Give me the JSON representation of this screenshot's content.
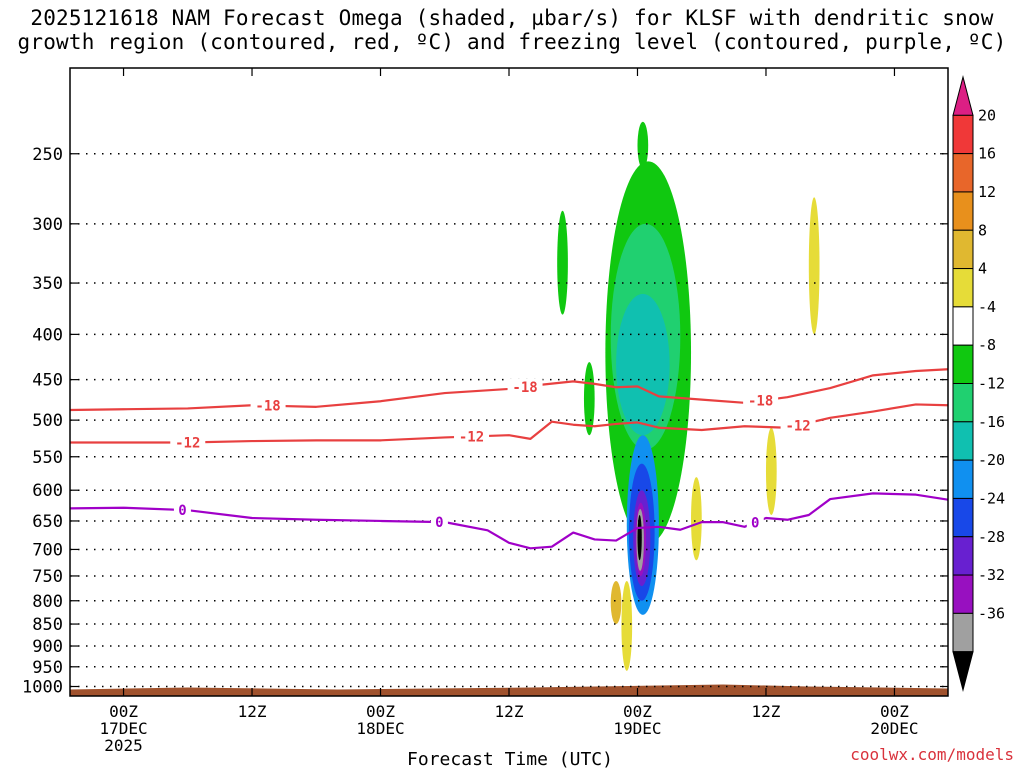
{
  "title": {
    "line1": "2025121618 NAM Forecast Omega (shaded, µbar/s) for KLSF with dendritic snow",
    "line2": "growth region (contoured, red, ºC) and freezing level (contoured, purple, ºC)"
  },
  "credit": "coolwx.com/models",
  "chart_data": {
    "type": "time-height cross section (shaded contour)",
    "xlabel": "Forecast Time (UTC)",
    "ylabel": "",
    "x_units": "hours from 17DEC 00Z",
    "xlim": [
      -5,
      77
    ],
    "y_units": "hPa",
    "ylim": [
      200,
      1025
    ],
    "y_scale": "log",
    "grid": true,
    "x_ticks": [
      {
        "hour": 0,
        "lines": [
          "00Z",
          "17DEC",
          "2025"
        ]
      },
      {
        "hour": 12,
        "lines": [
          "12Z"
        ]
      },
      {
        "hour": 24,
        "lines": [
          "00Z",
          "18DEC"
        ]
      },
      {
        "hour": 36,
        "lines": [
          "12Z"
        ]
      },
      {
        "hour": 48,
        "lines": [
          "00Z",
          "19DEC"
        ]
      },
      {
        "hour": 60,
        "lines": [
          "12Z"
        ]
      },
      {
        "hour": 72,
        "lines": [
          "00Z",
          "20DEC"
        ]
      }
    ],
    "y_ticks": [
      250,
      300,
      350,
      400,
      450,
      500,
      550,
      600,
      650,
      700,
      750,
      800,
      850,
      900,
      950,
      1000
    ],
    "colorbar": {
      "labels": [
        "20",
        "16",
        "12",
        "8",
        "4",
        "-4",
        "-8",
        "-12",
        "-16",
        "-20",
        "-24",
        "-28",
        "-32",
        "-36"
      ],
      "bins": [
        {
          "color": "#dc1f84",
          "shape": "over-arrow"
        },
        {
          "color": "#f03838"
        },
        {
          "color": "#e8662a"
        },
        {
          "color": "#e8901c"
        },
        {
          "color": "#e0b830"
        },
        {
          "color": "#e6dc38"
        },
        {
          "color": "#ffffff"
        },
        {
          "color": "#10c810"
        },
        {
          "color": "#20d070"
        },
        {
          "color": "#10c0b0"
        },
        {
          "color": "#1090f0"
        },
        {
          "color": "#1848e8"
        },
        {
          "color": "#6820d0"
        },
        {
          "color": "#9810c0"
        },
        {
          "color": "#a0a0a0"
        },
        {
          "color": "#000000",
          "shape": "under-arrow"
        }
      ]
    },
    "contours": [
      {
        "name": "-18C isotherm",
        "value": -18,
        "label": "-18",
        "color": "#e84040",
        "hours": [
          -5,
          0,
          6,
          12,
          18,
          24,
          30,
          36,
          39,
          42,
          44,
          46,
          48,
          50,
          54,
          58,
          62,
          66,
          70,
          74,
          77
        ],
        "hpa": [
          487,
          486,
          485,
          481,
          483,
          476,
          466,
          461,
          456,
          452,
          455,
          459,
          458,
          470,
          474,
          478,
          471,
          460,
          445,
          440,
          438
        ],
        "label_at": [
          [
            13.5,
            "-18"
          ],
          [
            37.5,
            "-18"
          ],
          [
            59.5,
            "-18"
          ]
        ]
      },
      {
        "name": "-12C isotherm",
        "value": -12,
        "label": "-12",
        "color": "#e84040",
        "hours": [
          -5,
          0,
          6,
          12,
          18,
          24,
          30,
          36,
          38,
          40,
          42,
          44,
          46,
          48,
          50,
          54,
          58,
          62,
          66,
          70,
          74,
          77
        ],
        "hpa": [
          530,
          530,
          530,
          528,
          527,
          527,
          523,
          520,
          525,
          502,
          506,
          508,
          505,
          503,
          510,
          513,
          508,
          510,
          497,
          489,
          480,
          481
        ],
        "label_at": [
          [
            6,
            "-12"
          ],
          [
            32.5,
            "-12"
          ],
          [
            63,
            "-12"
          ]
        ]
      },
      {
        "name": "0C freezing level",
        "value": 0,
        "label": "0",
        "color": "#a000c8",
        "hours": [
          -5,
          0,
          6,
          12,
          18,
          24,
          30,
          34,
          36,
          38,
          40,
          42,
          44,
          46,
          48,
          50,
          52,
          54,
          56,
          58,
          60,
          62,
          64,
          66,
          70,
          74,
          77
        ],
        "hpa": [
          629,
          628,
          632,
          645,
          648,
          650,
          652,
          666,
          688,
          698,
          695,
          670,
          682,
          684,
          662,
          660,
          665,
          652,
          652,
          660,
          645,
          648,
          640,
          614,
          605,
          607,
          615
        ],
        "label_at": [
          [
            5.5,
            "0"
          ],
          [
            29.5,
            "0"
          ],
          [
            59,
            "0"
          ]
        ]
      }
    ],
    "shaded_regions": [
      {
        "value_bin": "-4 to -8",
        "color": "#10c810",
        "hour_range": [
          40.5,
          41.5
        ],
        "hpa_range": [
          290,
          380
        ]
      },
      {
        "value_bin": "-4 to -8",
        "color": "#10c810",
        "hour_range": [
          43,
          44
        ],
        "hpa_range": [
          430,
          520
        ]
      },
      {
        "value_bin": "-4 to -8",
        "color": "#10c810",
        "hour_range": [
          45,
          53
        ],
        "hpa_range": [
          255,
          690
        ]
      },
      {
        "value_bin": "-4 to -8",
        "color": "#10c810",
        "hour_range": [
          48,
          49
        ],
        "hpa_range": [
          230,
          260
        ]
      },
      {
        "value_bin": "-8 to -12",
        "color": "#20d070",
        "hour_range": [
          45.5,
          52
        ],
        "hpa_range": [
          300,
          540
        ]
      },
      {
        "value_bin": "-12 to -16",
        "color": "#10c0b0",
        "hour_range": [
          46,
          51
        ],
        "hpa_range": [
          360,
          520
        ]
      },
      {
        "value_bin": "-16 to -20",
        "color": "#1090f0",
        "hour_range": [
          47,
          50
        ],
        "hpa_range": [
          520,
          830
        ]
      },
      {
        "value_bin": "-20 to -24",
        "color": "#1848e8",
        "hour_range": [
          47.2,
          49.6
        ],
        "hpa_range": [
          560,
          800
        ]
      },
      {
        "value_bin": "-24 to -28",
        "color": "#6820d0",
        "hour_range": [
          47.6,
          49.2
        ],
        "hpa_range": [
          600,
          770
        ]
      },
      {
        "value_bin": "-28 to -32",
        "color": "#9810c0",
        "hour_range": [
          47.8,
          48.8
        ],
        "hpa_range": [
          620,
          750
        ]
      },
      {
        "value_bin": "-32 to -36",
        "color": "#a0a0a0",
        "hour_range": [
          47.9,
          48.6
        ],
        "hpa_range": [
          630,
          740
        ]
      },
      {
        "value_bin": "< -36",
        "color": "#000000",
        "hour_range": [
          48.0,
          48.4
        ],
        "hpa_range": [
          640,
          720
        ]
      },
      {
        "value_bin": "4 to 8",
        "color": "#e6dc38",
        "hour_range": [
          60,
          61
        ],
        "hpa_range": [
          510,
          640
        ]
      },
      {
        "value_bin": "4 to 8",
        "color": "#e6dc38",
        "hour_range": [
          64,
          65
        ],
        "hpa_range": [
          280,
          400
        ]
      },
      {
        "value_bin": "4 to 8",
        "color": "#e6dc38",
        "hour_range": [
          46.5,
          47.5
        ],
        "hpa_range": [
          760,
          960
        ]
      },
      {
        "value_bin": "8 to 12",
        "color": "#e0b830",
        "hour_range": [
          45.5,
          46.5
        ],
        "hpa_range": [
          760,
          850
        ]
      },
      {
        "value_bin": "4 to 8",
        "color": "#e6dc38",
        "hour_range": [
          53,
          54
        ],
        "hpa_range": [
          580,
          720
        ]
      }
    ],
    "terrain": {
      "color": "#a0522d",
      "surface_hpa": 1000,
      "bottom_hpa": 1025
    }
  }
}
